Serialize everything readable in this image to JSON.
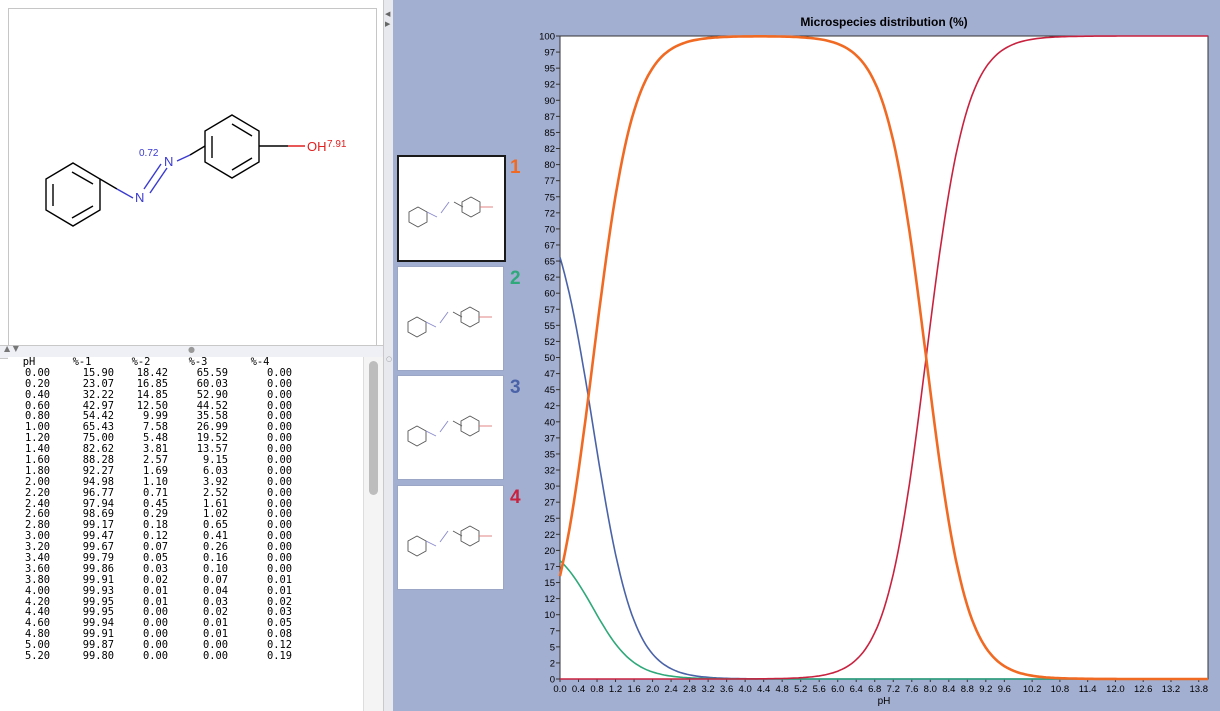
{
  "structure": {
    "label_n": "N",
    "label_n2": "N",
    "label_oh": "OH",
    "pka_n": "0.72",
    "pka_oh": "7.91"
  },
  "table": {
    "headers": [
      "pH",
      "%-1",
      "%-2",
      "%-3",
      "%-4"
    ],
    "rows": [
      [
        "0.00",
        "15.90",
        "18.42",
        "65.59",
        "0.00"
      ],
      [
        "0.20",
        "23.07",
        "16.85",
        "60.03",
        "0.00"
      ],
      [
        "0.40",
        "32.22",
        "14.85",
        "52.90",
        "0.00"
      ],
      [
        "0.60",
        "42.97",
        "12.50",
        "44.52",
        "0.00"
      ],
      [
        "0.80",
        "54.42",
        "9.99",
        "35.58",
        "0.00"
      ],
      [
        "1.00",
        "65.43",
        "7.58",
        "26.99",
        "0.00"
      ],
      [
        "1.20",
        "75.00",
        "5.48",
        "19.52",
        "0.00"
      ],
      [
        "1.40",
        "82.62",
        "3.81",
        "13.57",
        "0.00"
      ],
      [
        "1.60",
        "88.28",
        "2.57",
        "9.15",
        "0.00"
      ],
      [
        "1.80",
        "92.27",
        "1.69",
        "6.03",
        "0.00"
      ],
      [
        "2.00",
        "94.98",
        "1.10",
        "3.92",
        "0.00"
      ],
      [
        "2.20",
        "96.77",
        "0.71",
        "2.52",
        "0.00"
      ],
      [
        "2.40",
        "97.94",
        "0.45",
        "1.61",
        "0.00"
      ],
      [
        "2.60",
        "98.69",
        "0.29",
        "1.02",
        "0.00"
      ],
      [
        "2.80",
        "99.17",
        "0.18",
        "0.65",
        "0.00"
      ],
      [
        "3.00",
        "99.47",
        "0.12",
        "0.41",
        "0.00"
      ],
      [
        "3.20",
        "99.67",
        "0.07",
        "0.26",
        "0.00"
      ],
      [
        "3.40",
        "99.79",
        "0.05",
        "0.16",
        "0.00"
      ],
      [
        "3.60",
        "99.86",
        "0.03",
        "0.10",
        "0.00"
      ],
      [
        "3.80",
        "99.91",
        "0.02",
        "0.07",
        "0.01"
      ],
      [
        "4.00",
        "99.93",
        "0.01",
        "0.04",
        "0.01"
      ],
      [
        "4.20",
        "99.95",
        "0.01",
        "0.03",
        "0.02"
      ],
      [
        "4.40",
        "99.95",
        "0.00",
        "0.02",
        "0.03"
      ],
      [
        "4.60",
        "99.94",
        "0.00",
        "0.01",
        "0.05"
      ],
      [
        "4.80",
        "99.91",
        "0.00",
        "0.01",
        "0.08"
      ],
      [
        "5.00",
        "99.87",
        "0.00",
        "0.00",
        "0.12"
      ],
      [
        "5.20",
        "99.80",
        "0.00",
        "0.00",
        "0.19"
      ]
    ]
  },
  "species": [
    {
      "number": "1",
      "color": "#f06a23"
    },
    {
      "number": "2",
      "color": "#2fa87a"
    },
    {
      "number": "3",
      "color": "#4a63a8"
    },
    {
      "number": "4",
      "color": "#c8223f"
    }
  ],
  "chart_data": {
    "type": "line",
    "title": "Microspecies distribution (%)",
    "xlabel": "pH",
    "ylabel": "",
    "xlim": [
      0,
      14
    ],
    "ylim": [
      0,
      100
    ],
    "x_ticks": [
      "0.0",
      "0.4",
      "0.8",
      "1.2",
      "1.6",
      "2.0",
      "2.4",
      "2.8",
      "3.2",
      "3.6",
      "4.0",
      "4.4",
      "4.8",
      "5.2",
      "5.6",
      "6.0",
      "6.4",
      "6.8",
      "7.2",
      "7.6",
      "8.0",
      "8.4",
      "8.8",
      "9.2",
      "9.6",
      "10.2",
      "10.8",
      "11.4",
      "12.0",
      "12.6",
      "13.2",
      "13.8"
    ],
    "y_ticks": [
      "0",
      "2",
      "5",
      "7",
      "10",
      "12",
      "15",
      "17",
      "20",
      "22",
      "25",
      "27",
      "30",
      "32",
      "35",
      "37",
      "40",
      "42",
      "45",
      "47",
      "50",
      "52",
      "55",
      "57",
      "60",
      "62",
      "65",
      "67",
      "70",
      "72",
      "75",
      "77",
      "80",
      "82",
      "85",
      "87",
      "90",
      "92",
      "95",
      "97",
      "100"
    ],
    "pka": [
      0.72,
      7.91
    ],
    "series": [
      {
        "name": "1",
        "color": "#f06a23"
      },
      {
        "name": "2",
        "color": "#2fa87a"
      },
      {
        "name": "3",
        "color": "#4a63a8"
      },
      {
        "name": "4",
        "color": "#c8223f"
      }
    ]
  }
}
